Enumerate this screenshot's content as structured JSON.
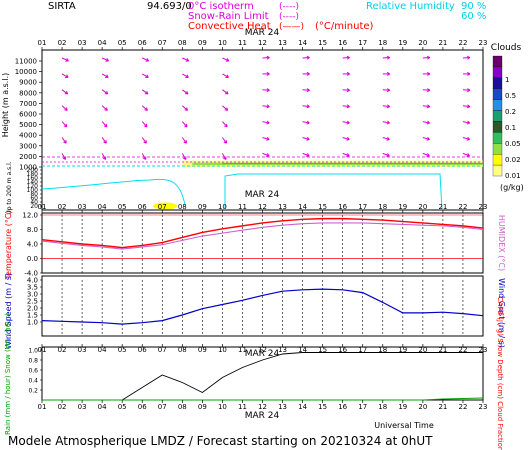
{
  "header": {
    "station": "SIRTA",
    "coord": "94.693/0",
    "isotherm_label": "0°C isotherm",
    "isotherm_symbol": "(----)",
    "snow_rain_label": "Snow-Rain Limit",
    "snow_rain_symbol": "(----)",
    "convective_label": "Convective Heat",
    "convective_symbol": "(——)",
    "convective_unit": "(°C/minute)",
    "rh_label": "Relative Humidity",
    "rh_90": "90 %",
    "rh_60": "60 %"
  },
  "date_label": "MAR 24",
  "footer_title": "Modele Atmospherique LMDZ / Forecast starting on 20210324 at 0hUT",
  "universal_time_label": "Universal Time",
  "colors": {
    "magenta": "#e000e0",
    "cyan": "#00e0f0",
    "red": "#ff0000",
    "blue": "#0000cc",
    "green": "#00a000",
    "orange": "#ff8000",
    "humidex": "#d060d0"
  },
  "chart_data": [
    {
      "type": "line",
      "title": "Height / Clouds / Wind",
      "x": [
        "01",
        "02",
        "03",
        "04",
        "05",
        "06",
        "07",
        "08",
        "09",
        "10",
        "11",
        "12",
        "13",
        "14",
        "15",
        "16",
        "17",
        "18",
        "19",
        "20",
        "21",
        "22",
        "23"
      ],
      "ylabel_upper": "Height (m a.s.l.)",
      "ylabel_lower": "Up to 200 m a.s.l.",
      "yticks_upper": [
        1000,
        2000,
        3000,
        4000,
        5000,
        6000,
        7000,
        8000,
        9000,
        10000,
        11000
      ],
      "yticks_lower": [
        20,
        40,
        60,
        80,
        100,
        120,
        140,
        160,
        180,
        200
      ],
      "colorbar": {
        "title": "Clouds",
        "unit": "(g/kg)",
        "levels": [
          "1",
          "0.5",
          "0.2",
          "0.1",
          "0.05",
          "0.02",
          "0.01"
        ],
        "colors": [
          "#6a006a",
          "#8800cc",
          "#1c0fa0",
          "#1a48c8",
          "#2890e0",
          "#1aa070",
          "#2a5a2a",
          "#30c060",
          "#90e040",
          "#ffff00",
          "#ffff80"
        ]
      },
      "cloud_hours": [
        "08",
        "09",
        "10",
        "11",
        "12",
        "13",
        "14",
        "15",
        "16",
        "17",
        "18",
        "19",
        "20",
        "21",
        "22",
        "23"
      ],
      "cloud_base_m": 1000,
      "cloud_top_m": 1600
    },
    {
      "type": "line",
      "ylabel_left": "Temperature (°C)",
      "ylabel_right": "HUMIDEX (°C)",
      "ylim": [
        -4,
        12
      ],
      "yticks": [
        "-4.0",
        "0.0",
        "4.0",
        "8.0",
        "12.0"
      ],
      "series": [
        {
          "name": "Temperature",
          "values": [
            5.2,
            4.6,
            4.0,
            3.6,
            3.0,
            3.6,
            4.4,
            5.8,
            7.2,
            8.2,
            9.0,
            9.8,
            10.4,
            10.8,
            11.0,
            11.0,
            10.8,
            10.6,
            10.2,
            9.8,
            9.4,
            9.0,
            8.4
          ]
        },
        {
          "name": "HUMIDEX",
          "values": [
            4.8,
            4.2,
            3.6,
            3.2,
            2.6,
            3.2,
            3.8,
            5.0,
            6.2,
            7.0,
            7.8,
            8.6,
            9.2,
            9.6,
            9.8,
            9.8,
            9.8,
            9.6,
            9.4,
            9.2,
            9.0,
            8.6,
            8.0
          ]
        }
      ]
    },
    {
      "type": "line",
      "ylabel_left": "Wind Speed (m / s)",
      "ylabel_right": "Wind Gust (m / s)",
      "ylim": [
        0,
        4
      ],
      "yticks": [
        "1.0",
        "1.5",
        "2.0",
        "2.5",
        "3.0",
        "3.5",
        "4.0"
      ],
      "series": [
        {
          "name": "Wind Speed",
          "values": [
            1.1,
            1.05,
            1.0,
            0.95,
            0.85,
            0.95,
            1.1,
            1.5,
            1.95,
            2.25,
            2.55,
            2.9,
            3.2,
            3.3,
            3.35,
            3.3,
            3.1,
            2.4,
            1.65,
            1.65,
            1.7,
            1.6,
            1.45
          ]
        }
      ]
    },
    {
      "type": "line",
      "ylabel_left": "Rain (mm / hour)  Snow (cm / hour)",
      "ylabel_right": "CAPE (J / g)  Snow Depth (cm)  Cloud Fraction",
      "ylim": [
        0,
        1
      ],
      "yticks": [
        "0.2",
        "0.4",
        "0.6",
        "0.8",
        "1.0"
      ],
      "series": [
        {
          "name": "Cloud Fraction",
          "values": [
            0,
            0,
            0,
            0,
            0,
            0.25,
            0.5,
            0.35,
            0.15,
            0.45,
            0.65,
            0.8,
            0.92,
            0.95,
            0.95,
            0.95,
            0.95,
            0.95,
            0.95,
            0.95,
            0.95,
            0.95,
            0.95
          ]
        },
        {
          "name": "Rain",
          "values": [
            0,
            0,
            0,
            0,
            0,
            0,
            0,
            0,
            0,
            0,
            0,
            0,
            0,
            0,
            0,
            0,
            0,
            0,
            0,
            0,
            0.02,
            0.03,
            0.04
          ]
        }
      ]
    }
  ]
}
